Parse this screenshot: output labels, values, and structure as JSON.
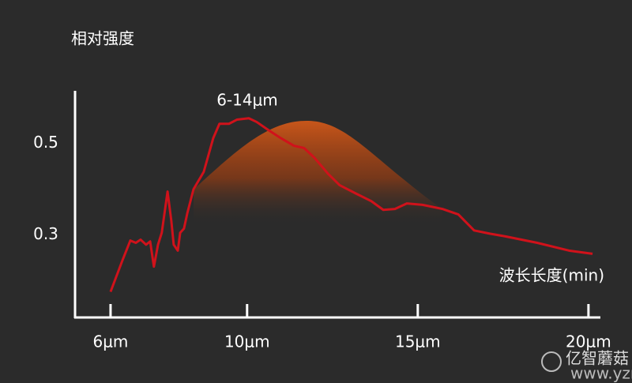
{
  "chart_data": {
    "type": "line",
    "ylabel": "相对强度",
    "xlabel": "波长长度(min)",
    "annotation": "6-14μm",
    "watermark": "亿智蘑菇",
    "watermark_url": "www.yzmg.com",
    "xlim": [
      4.96,
      20.35
    ],
    "ylim": [
      0.12,
      0.615
    ],
    "xticks": [
      {
        "value": 6,
        "label": "6μm"
      },
      {
        "value": 10,
        "label": "10μm"
      },
      {
        "value": 15,
        "label": "15μm"
      },
      {
        "value": 20,
        "label": "20μm"
      }
    ],
    "yticks": [
      0.3,
      0.5
    ],
    "x": [
      6.0,
      6.35,
      6.58,
      6.74,
      6.88,
      7.04,
      7.16,
      7.27,
      7.39,
      7.5,
      7.67,
      7.78,
      7.85,
      7.97,
      8.04,
      8.15,
      8.25,
      8.43,
      8.73,
      9.01,
      9.19,
      9.47,
      9.7,
      10.05,
      10.28,
      10.63,
      10.98,
      11.37,
      11.67,
      11.97,
      12.37,
      12.71,
      13.18,
      13.64,
      13.99,
      14.33,
      14.68,
      15.14,
      15.72,
      16.19,
      16.65,
      17.11,
      17.57,
      18.5,
      19.43,
      20.12
    ],
    "series": [
      {
        "color": "#d0121b",
        "values": [
          0.176,
          0.245,
          0.288,
          0.283,
          0.29,
          0.279,
          0.286,
          0.231,
          0.279,
          0.305,
          0.395,
          0.331,
          0.279,
          0.266,
          0.305,
          0.314,
          0.348,
          0.4,
          0.438,
          0.512,
          0.543,
          0.543,
          0.552,
          0.555,
          0.547,
          0.529,
          0.512,
          0.495,
          0.49,
          0.469,
          0.434,
          0.409,
          0.391,
          0.374,
          0.355,
          0.357,
          0.369,
          0.366,
          0.357,
          0.345,
          0.31,
          0.303,
          0.297,
          0.283,
          0.266,
          0.259
        ]
      }
    ]
  }
}
